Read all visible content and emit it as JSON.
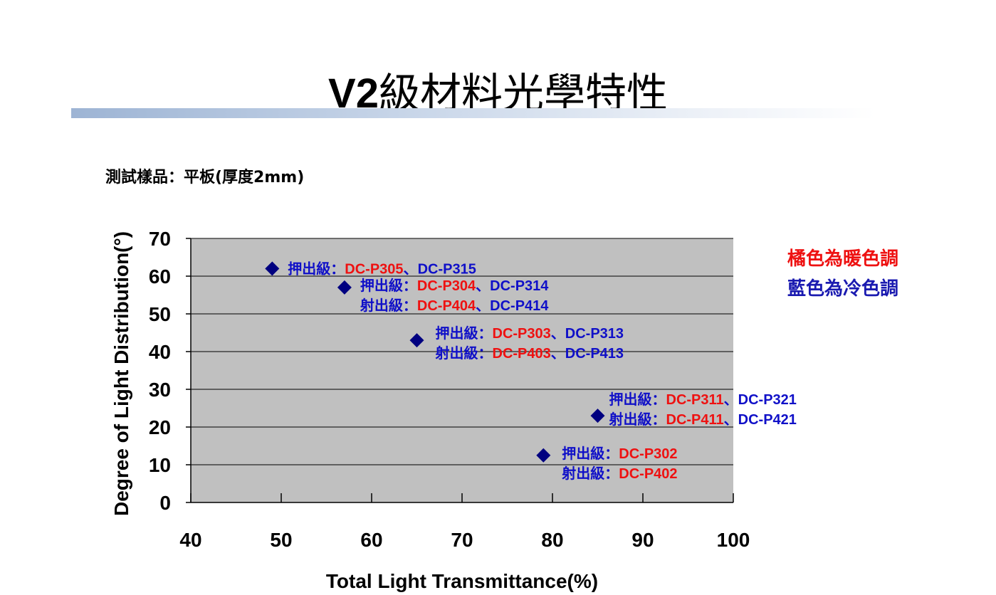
{
  "slide": {
    "title_prefix": "V2",
    "title_rest": "級材料光學特性",
    "sample_note": "測試樣品：平板(厚度2mm)"
  },
  "color_notes": [
    {
      "text": "橘色為暖色調",
      "color": "#ee1111"
    },
    {
      "text": "藍色為冷色調",
      "color": "#1a1ab0"
    }
  ],
  "colors": {
    "plot_background": "#c0c0c0",
    "marker": "#000080",
    "warm": "#ee1111",
    "cool": "#1010c8"
  },
  "chart_data": {
    "type": "scatter",
    "xlabel": "Total Light Transmittance(%)",
    "ylabel": "Degree of Light Distribution(°)",
    "xlim": [
      40,
      100
    ],
    "ylim": [
      0,
      70
    ],
    "xticks": [
      40,
      50,
      60,
      70,
      80,
      90,
      100
    ],
    "yticks": [
      0,
      10,
      20,
      30,
      40,
      50,
      60,
      70
    ],
    "grid": "horizontal",
    "points": [
      {
        "x": 49,
        "y": 62,
        "labels": [
          {
            "prefix": "押出級：",
            "warm": "DC-P305",
            "sep": "、",
            "cool": "DC-P315"
          }
        ]
      },
      {
        "x": 57,
        "y": 57,
        "labels": [
          {
            "prefix": "押出級：",
            "warm": "DC-P304",
            "sep": "、",
            "cool": "DC-P314"
          },
          {
            "prefix": "射出級：",
            "warm": "DC-P404",
            "sep": "、",
            "cool": "DC-P414"
          }
        ]
      },
      {
        "x": 65,
        "y": 43,
        "labels": [
          {
            "prefix": "押出級：",
            "warm": "DC-P303",
            "sep": "、",
            "cool": "DC-P313"
          },
          {
            "prefix": "射出級：",
            "warm": "DC-P403",
            "sep": "、",
            "cool": "DC-P413"
          }
        ]
      },
      {
        "x": 85,
        "y": 23,
        "labels": [
          {
            "prefix": "押出級：",
            "warm": "DC-P311",
            "sep": "、",
            "cool": "DC-P321"
          },
          {
            "prefix": "射出級：",
            "warm": "DC-P411",
            "sep": "、",
            "cool": "DC-P421"
          }
        ]
      },
      {
        "x": 79,
        "y": 12.5,
        "labels": [
          {
            "prefix": "押出級：",
            "warm": "DC-P302"
          },
          {
            "prefix": "射出級：",
            "warm": "DC-P402"
          }
        ]
      }
    ]
  }
}
